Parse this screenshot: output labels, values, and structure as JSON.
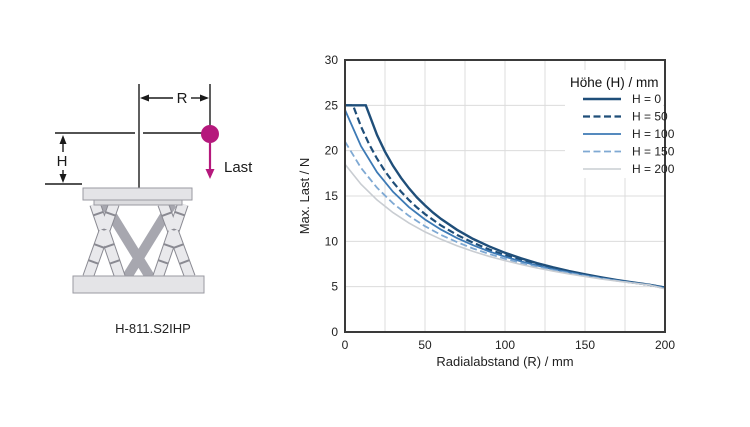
{
  "diagram": {
    "labels": {
      "radius": "R",
      "height": "H",
      "load": "Last"
    },
    "caption": "H-811.S2IHP",
    "accent_color": "#b5187c"
  },
  "chart_data": {
    "type": "line",
    "title": "",
    "xlabel": "Radialabstand (R) / mm",
    "ylabel": "Max. Last / N",
    "xlim": [
      0,
      200
    ],
    "ylim": [
      0,
      30
    ],
    "xticks": [
      0,
      50,
      100,
      150,
      200
    ],
    "yticks": [
      0,
      5,
      10,
      15,
      20,
      25,
      30
    ],
    "x_grid_step": 25,
    "grid": true,
    "grid_color": "#dcdcdc",
    "axis_color": "#3a3a3a",
    "legend_title": "Höhe (H) / mm",
    "legend_position": "top-right",
    "series": [
      {
        "name": "H = 0",
        "color": "#1f4e79",
        "dash": null,
        "width": 2.4,
        "points": [
          [
            0,
            25
          ],
          [
            13,
            25
          ],
          [
            20,
            21.74
          ],
          [
            25,
            19.89
          ],
          [
            30,
            18.33
          ],
          [
            35,
            17.01
          ],
          [
            40,
            15.85
          ],
          [
            45,
            14.84
          ],
          [
            50,
            13.96
          ],
          [
            55,
            13.17
          ],
          [
            60,
            12.47
          ],
          [
            70,
            11.27
          ],
          [
            80,
            10.27
          ],
          [
            90,
            9.45
          ],
          [
            100,
            8.74
          ],
          [
            110,
            8.13
          ],
          [
            120,
            7.6
          ],
          [
            130,
            7.14
          ],
          [
            140,
            6.73
          ],
          [
            150,
            6.36
          ],
          [
            160,
            6.03
          ],
          [
            170,
            5.74
          ],
          [
            180,
            5.47
          ],
          [
            190,
            5.22
          ],
          [
            200,
            4.9
          ]
        ]
      },
      {
        "name": "H = 50",
        "color": "#1f4e79",
        "dash": "7,3.5",
        "width": 2.2,
        "points": [
          [
            0,
            25
          ],
          [
            5,
            25
          ],
          [
            10,
            22.67
          ],
          [
            15,
            20.74
          ],
          [
            20,
            19.12
          ],
          [
            25,
            17.73
          ],
          [
            30,
            16.53
          ],
          [
            35,
            15.48
          ],
          [
            40,
            14.55
          ],
          [
            45,
            13.73
          ],
          [
            50,
            13
          ],
          [
            60,
            11.75
          ],
          [
            70,
            10.71
          ],
          [
            80,
            9.85
          ],
          [
            90,
            9.11
          ],
          [
            100,
            8.48
          ],
          [
            110,
            7.93
          ],
          [
            120,
            7.44
          ],
          [
            130,
            7.01
          ],
          [
            140,
            6.63
          ],
          [
            150,
            6.29
          ],
          [
            160,
            5.98
          ],
          [
            170,
            5.7
          ],
          [
            180,
            5.45
          ],
          [
            190,
            5.21
          ],
          [
            200,
            4.9
          ]
        ]
      },
      {
        "name": "H = 100",
        "color": "#3d7ab5",
        "dash": null,
        "width": 1.8,
        "points": [
          [
            0,
            24.5
          ],
          [
            10,
            20.5
          ],
          [
            20,
            17.63
          ],
          [
            30,
            15.46
          ],
          [
            40,
            13.76
          ],
          [
            50,
            12.41
          ],
          [
            60,
            11.29
          ],
          [
            70,
            10.36
          ],
          [
            80,
            9.57
          ],
          [
            90,
            8.89
          ],
          [
            100,
            8.3
          ],
          [
            110,
            7.79
          ],
          [
            120,
            7.33
          ],
          [
            130,
            6.93
          ],
          [
            140,
            6.57
          ],
          [
            150,
            6.24
          ],
          [
            160,
            5.95
          ],
          [
            170,
            5.68
          ],
          [
            180,
            5.43
          ],
          [
            190,
            5.21
          ],
          [
            200,
            4.85
          ]
        ]
      },
      {
        "name": "H = 150",
        "color": "#7fa9d3",
        "dash": "7,3.5",
        "width": 1.8,
        "points": [
          [
            0,
            21
          ],
          [
            10,
            18.1
          ],
          [
            20,
            15.91
          ],
          [
            30,
            14.19
          ],
          [
            40,
            12.8
          ],
          [
            50,
            11.67
          ],
          [
            60,
            10.71
          ],
          [
            70,
            9.91
          ],
          [
            80,
            9.21
          ],
          [
            90,
            8.61
          ],
          [
            100,
            8.08
          ],
          [
            110,
            7.61
          ],
          [
            120,
            7.19
          ],
          [
            130,
            6.82
          ],
          [
            140,
            6.48
          ],
          [
            150,
            6.18
          ],
          [
            160,
            5.9
          ],
          [
            170,
            5.65
          ],
          [
            180,
            5.41
          ],
          [
            190,
            5.2
          ],
          [
            200,
            4.8
          ]
        ]
      },
      {
        "name": "H = 200",
        "color": "#c9cdd2",
        "dash": null,
        "width": 1.6,
        "points": [
          [
            0,
            18.5
          ],
          [
            10,
            16.3
          ],
          [
            20,
            14.57
          ],
          [
            30,
            13.17
          ],
          [
            40,
            12.01
          ],
          [
            50,
            11.04
          ],
          [
            60,
            10.22
          ],
          [
            70,
            9.51
          ],
          [
            80,
            8.89
          ],
          [
            90,
            8.35
          ],
          [
            100,
            7.87
          ],
          [
            110,
            7.45
          ],
          [
            120,
            7.06
          ],
          [
            130,
            6.72
          ],
          [
            140,
            6.4
          ],
          [
            150,
            6.12
          ],
          [
            160,
            5.85
          ],
          [
            170,
            5.61
          ],
          [
            180,
            5.39
          ],
          [
            190,
            5.19
          ],
          [
            200,
            4.75
          ]
        ]
      }
    ]
  }
}
